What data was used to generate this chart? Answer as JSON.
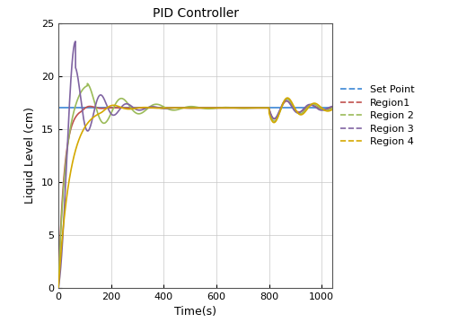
{
  "title": "PID Controller",
  "xlabel": "Time(s)",
  "ylabel": "Liquid Level (cm)",
  "setpoint": 17,
  "xlim": [
    0,
    1040
  ],
  "ylim": [
    0,
    25
  ],
  "xticks": [
    0,
    200,
    400,
    600,
    800,
    1000
  ],
  "yticks": [
    0,
    5,
    10,
    15,
    20,
    25
  ],
  "setpoint_color": "#4A90D9",
  "region1_color": "#C0504D",
  "region2_color": "#9BBB59",
  "region3_color": "#8064A2",
  "region4_color": "#D4A800",
  "bg_color": "#FFFFFF",
  "grid_color": "#C8C8C8",
  "figsize": [
    5.0,
    3.69
  ],
  "dpi": 100
}
